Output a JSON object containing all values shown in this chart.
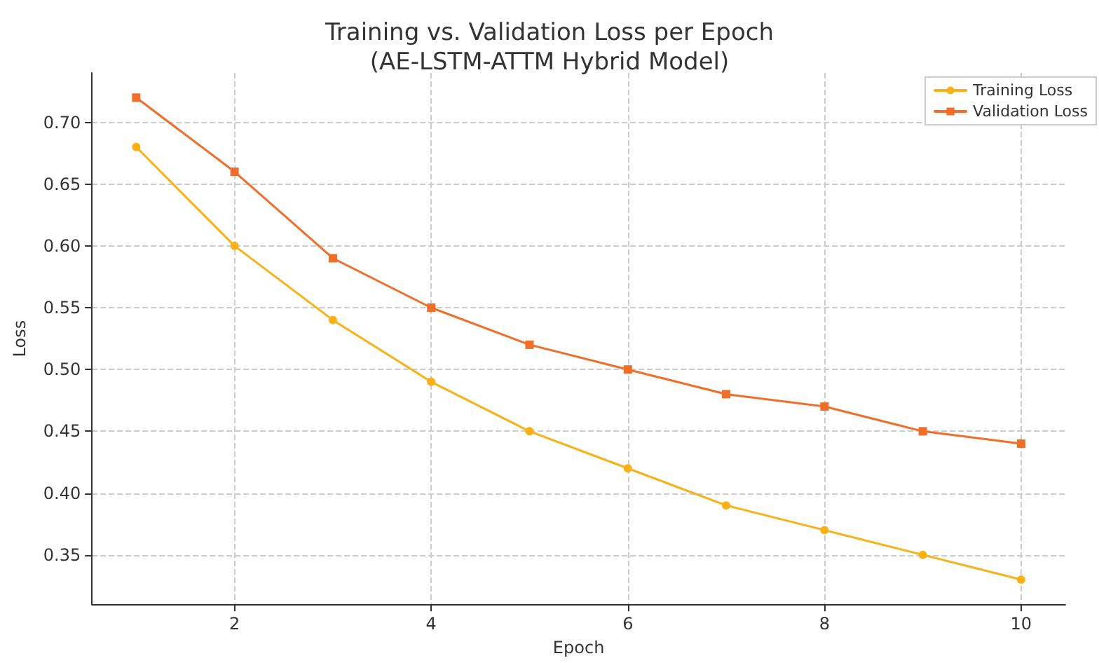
{
  "chart_data": {
    "type": "line",
    "title": "Training vs. Validation Loss per Epoch\n(AE-LSTM-ATTM Hybrid Model)",
    "xlabel": "Epoch",
    "ylabel": "Loss",
    "x": [
      1,
      2,
      3,
      4,
      5,
      6,
      7,
      8,
      9,
      10
    ],
    "series": [
      {
        "name": "Training Loss",
        "color": "#fbb016",
        "marker": "circle",
        "values": [
          0.68,
          0.6,
          0.54,
          0.49,
          0.45,
          0.42,
          0.39,
          0.37,
          0.35,
          0.33
        ]
      },
      {
        "name": "Validation Loss",
        "color": "#f06e2a",
        "marker": "square",
        "values": [
          0.72,
          0.66,
          0.59,
          0.55,
          0.52,
          0.5,
          0.48,
          0.47,
          0.45,
          0.44
        ]
      }
    ],
    "xlim": [
      0.55,
      10.45
    ],
    "xticks": [
      2,
      4,
      6,
      8,
      10
    ],
    "ylim": [
      0.31,
      0.74
    ],
    "yticks": [
      {
        "value": 0.35,
        "label": "0.35"
      },
      {
        "value": 0.4,
        "label": "0.40"
      },
      {
        "value": 0.45,
        "label": "0.45"
      },
      {
        "value": 0.5,
        "label": "0.50"
      },
      {
        "value": 0.55,
        "label": "0.55"
      },
      {
        "value": 0.6,
        "label": "0.60"
      },
      {
        "value": 0.65,
        "label": "0.65"
      },
      {
        "value": 0.7,
        "label": "0.70"
      }
    ],
    "grid": true,
    "legend": "top right"
  }
}
